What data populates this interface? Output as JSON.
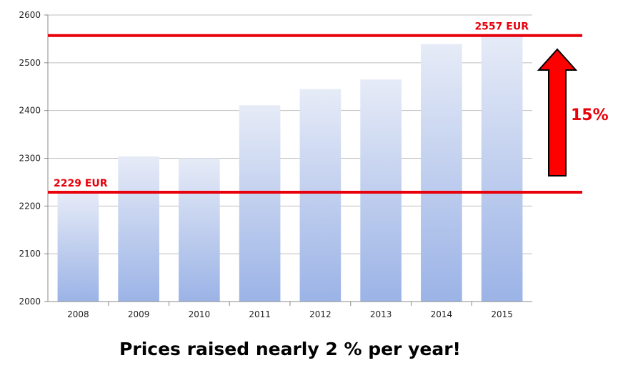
{
  "chart_data": {
    "type": "bar",
    "categories": [
      "2008",
      "2009",
      "2010",
      "2011",
      "2012",
      "2013",
      "2014",
      "2015"
    ],
    "values": [
      2229,
      2304,
      2300,
      2411,
      2445,
      2465,
      2539,
      2557
    ],
    "ylim": [
      2000,
      2600
    ],
    "yticks": [
      2000,
      2100,
      2200,
      2300,
      2400,
      2500,
      2600
    ],
    "grid": true,
    "reference_lines": [
      {
        "value": 2557,
        "label": "2557 EUR"
      },
      {
        "value": 2229,
        "label": "2229 EUR"
      }
    ],
    "annotation": {
      "label": "15%"
    },
    "colors": {
      "bar_top": "#e6ebf7",
      "bar_bottom": "#9bb3e6",
      "reference": "#e8000b",
      "grid": "#bfbfbf"
    }
  },
  "caption": "Prices raised nearly 2 % per year!"
}
